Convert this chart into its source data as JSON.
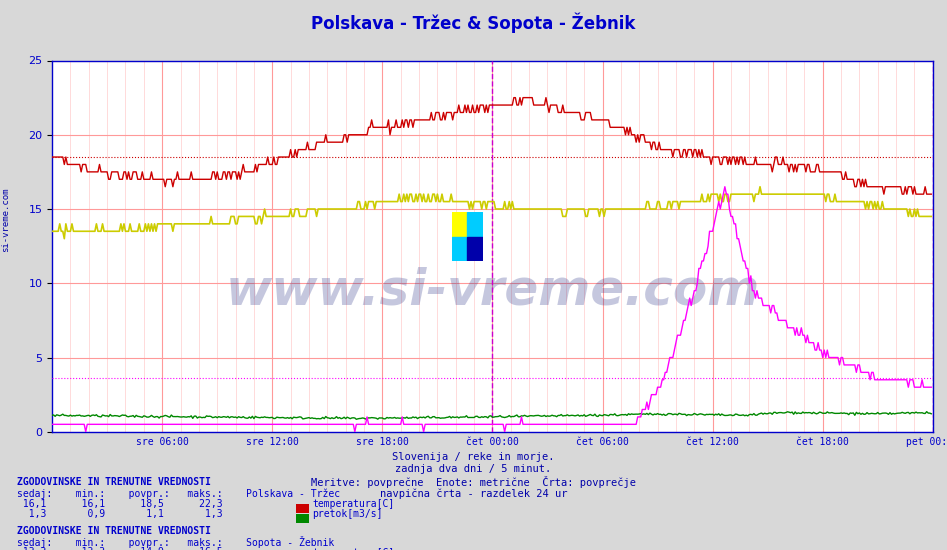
{
  "title": "Polskava - Tržec & Sopota - Žebnik",
  "title_color": "#0000cc",
  "bg_color": "#d8d8d8",
  "plot_bg_color": "#ffffff",
  "ylabel": "",
  "yticks": [
    0,
    5,
    10,
    15,
    20,
    25
  ],
  "ylim": [
    0,
    25
  ],
  "num_points": 576,
  "x_tick_labels": [
    "sre 06:00",
    "sre 12:00",
    "sre 18:00",
    "čet 00:00",
    "čet 06:00",
    "čet 12:00",
    "čet 18:00",
    "pet 00:00"
  ],
  "x_tick_positions": [
    72,
    144,
    216,
    288,
    360,
    432,
    504,
    576
  ],
  "vline_color": "#cc00cc",
  "vline_positions": [
    288,
    576
  ],
  "watermark_text": "www.si-vreme.com",
  "watermark_color": "#1a237e",
  "watermark_alpha": 0.25,
  "subtitle_lines": [
    "Slovenija / reke in morje.",
    "zadnja dva dni / 5 minut.",
    "Meritve: povprečne  Enote: metrične  Črta: povprečje",
    "navpična črta - razdelek 24 ur"
  ],
  "subtitle_color": "#0000aa",
  "left_label_color": "#0000aa",
  "axis_color": "#0000cc",
  "hline_red_y": 18.5,
  "hline_magenta_y": 3.6
}
